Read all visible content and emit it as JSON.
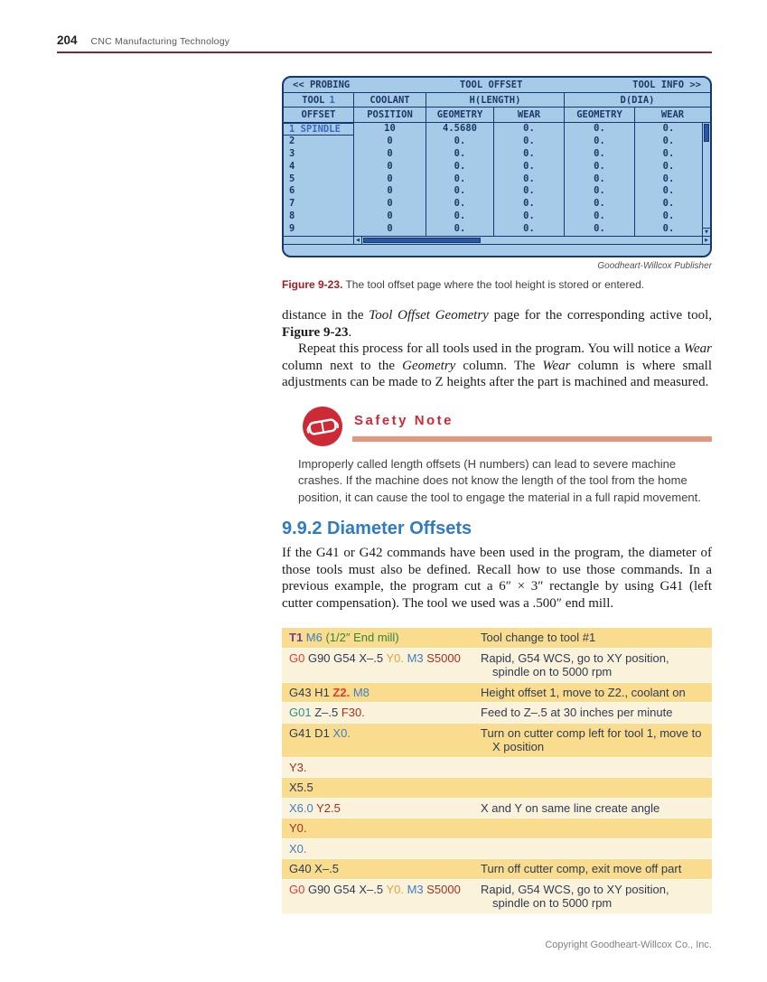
{
  "page": {
    "number": "204",
    "book_title": "CNC Manufacturing Technology",
    "copyright": "Copyright Goodheart-Willcox Co., Inc."
  },
  "colors": {
    "header_rule": "#8b2332",
    "figure_label_red": "#a41e22",
    "safety_red": "#ce2a36",
    "safety_bar_salmon": "#e5967c",
    "heading_blue": "#2f7cc1",
    "screen_background": "#a6cbe9",
    "screen_border": "#17386b",
    "screen_text": "#1f3864",
    "screen_accent_blue": "#3a68c0",
    "scroll_thumb": "#2b56a5",
    "gcode_row_shaded": "#fadc8e",
    "gcode_row_light": "#fbf2db",
    "code_navy": "#2e3b52",
    "code_red": "#e23b2e",
    "code_maroon": "#a33028",
    "code_orange": "#e2a23b",
    "code_blue": "#3f7ec1",
    "code_teal": "#2f8e8e",
    "code_purple": "#6c3f9e",
    "code_green": "#338542"
  },
  "machine_screen": {
    "nav": {
      "left": "<< PROBING",
      "center": "TOOL OFFSET",
      "right": "TOOL INFO >>"
    },
    "header2": {
      "tool_label": "TOOL",
      "tool_number": "1",
      "coolant": "COOLANT",
      "h_length": "H(LENGTH)",
      "d_dia": "D(DIA)"
    },
    "columns": [
      "OFFSET",
      "POSITION",
      "GEOMETRY",
      "WEAR",
      "GEOMETRY",
      "WEAR"
    ],
    "rows": [
      {
        "offset": "1 SPINDLE",
        "position": "10",
        "h_geometry": "4.5680",
        "h_wear": "0.",
        "d_geometry": "0.",
        "d_wear": "0.",
        "selected": true
      },
      {
        "offset": "2",
        "position": "0",
        "h_geometry": "0.",
        "h_wear": "0.",
        "d_geometry": "0.",
        "d_wear": "0.",
        "selected": false
      },
      {
        "offset": "3",
        "position": "0",
        "h_geometry": "0.",
        "h_wear": "0.",
        "d_geometry": "0.",
        "d_wear": "0.",
        "selected": false
      },
      {
        "offset": "4",
        "position": "0",
        "h_geometry": "0.",
        "h_wear": "0.",
        "d_geometry": "0.",
        "d_wear": "0.",
        "selected": false
      },
      {
        "offset": "5",
        "position": "0",
        "h_geometry": "0.",
        "h_wear": "0.",
        "d_geometry": "0.",
        "d_wear": "0.",
        "selected": false
      },
      {
        "offset": "6",
        "position": "0",
        "h_geometry": "0.",
        "h_wear": "0.",
        "d_geometry": "0.",
        "d_wear": "0.",
        "selected": false
      },
      {
        "offset": "7",
        "position": "0",
        "h_geometry": "0.",
        "h_wear": "0.",
        "d_geometry": "0.",
        "d_wear": "0.",
        "selected": false
      },
      {
        "offset": "8",
        "position": "0",
        "h_geometry": "0.",
        "h_wear": "0.",
        "d_geometry": "0.",
        "d_wear": "0.",
        "selected": false
      },
      {
        "offset": "9",
        "position": "0",
        "h_geometry": "0.",
        "h_wear": "0.",
        "d_geometry": "0.",
        "d_wear": "0.",
        "selected": false
      }
    ],
    "credit": "Goodheart-Willcox Publisher"
  },
  "figure_caption": {
    "label": "Figure 9-23.",
    "text": " The tool offset page where the tool height is stored or entered."
  },
  "content": {
    "p1": [
      {
        "t": "distance in the ",
        "s": "r"
      },
      {
        "t": "Tool Offset Geometry",
        "s": "i"
      },
      {
        "t": " page for the corresponding active tool, ",
        "s": "r"
      },
      {
        "t": "Figure 9-23",
        "s": "b"
      },
      {
        "t": ".",
        "s": "r"
      }
    ],
    "p2": [
      {
        "t": "Repeat this process for all tools used in the program. You will notice a ",
        "s": "r"
      },
      {
        "t": "Wear",
        "s": "i"
      },
      {
        "t": " column next to the ",
        "s": "r"
      },
      {
        "t": "Geometry",
        "s": "i"
      },
      {
        "t": " column. The ",
        "s": "r"
      },
      {
        "t": "Wear",
        "s": "i"
      },
      {
        "t": " column is where small adjustments can be made to Z heights after the part is machined and measured.",
        "s": "r"
      }
    ]
  },
  "safety_note": {
    "title": "Safety Note",
    "icon": "safety-goggles-icon",
    "text": "Improperly called length offsets (H numbers) can lead to severe machine crashes. If the machine does not know the length of the tool from the home position, it can cause the tool to engage the material in a full rapid movement."
  },
  "section": {
    "heading": "9.9.2 Diameter Offsets",
    "paragraph": [
      {
        "t": "If the G41 or G42 commands have been used in the program, the diameter of those tools must also be defined. Recall how to use those commands. In a previous example, the program cut a 6″ × 3″ rectangle by using G41 (left cutter compensation). The tool we used was a .500″ end mill.",
        "s": "r"
      }
    ]
  },
  "gcode_table": {
    "rows": [
      {
        "shaded": true,
        "code": [
          {
            "t": "T1 ",
            "c": "purple",
            "b": true
          },
          {
            "t": "M6 ",
            "c": "blue"
          },
          {
            "t": " (1/2″ End mill)",
            "c": "green"
          }
        ],
        "desc": [
          "Tool change to tool #1"
        ]
      },
      {
        "shaded": false,
        "code": [
          {
            "t": "G0 ",
            "c": "red"
          },
          {
            "t": "G90 G54 X–.5 ",
            "c": "navy"
          },
          {
            "t": "Y0. ",
            "c": "orange"
          },
          {
            "t": "M3 ",
            "c": "blue"
          },
          {
            "t": "S5000",
            "c": "maroon"
          }
        ],
        "desc": [
          "Rapid, G54 WCS, go to XY position,",
          "spindle on to 5000 rpm"
        ]
      },
      {
        "shaded": true,
        "code": [
          {
            "t": "G43 H1 ",
            "c": "navy"
          },
          {
            "t": "Z2. ",
            "c": "red",
            "b": true
          },
          {
            "t": "M8",
            "c": "blue"
          }
        ],
        "desc": [
          "Height offset 1, move to Z2., coolant on"
        ]
      },
      {
        "shaded": false,
        "code": [
          {
            "t": "G01 ",
            "c": "teal"
          },
          {
            "t": "Z–.5 ",
            "c": "navy"
          },
          {
            "t": "F30.",
            "c": "maroon"
          }
        ],
        "desc": [
          "Feed to Z–.5 at 30 inches per minute"
        ]
      },
      {
        "shaded": true,
        "code": [
          {
            "t": "G41 D1 ",
            "c": "navy"
          },
          {
            "t": "X0.",
            "c": "blue"
          }
        ],
        "desc": [
          "Turn on cutter comp left for tool 1, move to",
          "X position"
        ]
      },
      {
        "shaded": false,
        "code": [
          {
            "t": "Y3.",
            "c": "maroon"
          }
        ],
        "desc": []
      },
      {
        "shaded": true,
        "code": [
          {
            "t": "X5.5",
            "c": "navy"
          }
        ],
        "desc": []
      },
      {
        "shaded": false,
        "code": [
          {
            "t": "X6.0 ",
            "c": "blue"
          },
          {
            "t": "Y2.5",
            "c": "maroon"
          }
        ],
        "desc": [
          "X and Y on same line create angle"
        ]
      },
      {
        "shaded": true,
        "code": [
          {
            "t": "Y0.",
            "c": "maroon"
          }
        ],
        "desc": []
      },
      {
        "shaded": false,
        "code": [
          {
            "t": "X0.",
            "c": "blue"
          }
        ],
        "desc": []
      },
      {
        "shaded": true,
        "code": [
          {
            "t": "G40 X–.5",
            "c": "navy"
          }
        ],
        "desc": [
          "Turn off cutter comp, exit move off part"
        ]
      },
      {
        "shaded": false,
        "code": [
          {
            "t": "G0 ",
            "c": "red"
          },
          {
            "t": "G90 G54 X–.5 ",
            "c": "navy"
          },
          {
            "t": "Y0. ",
            "c": "orange"
          },
          {
            "t": "M3 ",
            "c": "blue"
          },
          {
            "t": "S5000",
            "c": "maroon"
          }
        ],
        "desc": [
          "Rapid, G54 WCS, go to XY position,",
          "spindle on to 5000 rpm"
        ]
      }
    ]
  }
}
